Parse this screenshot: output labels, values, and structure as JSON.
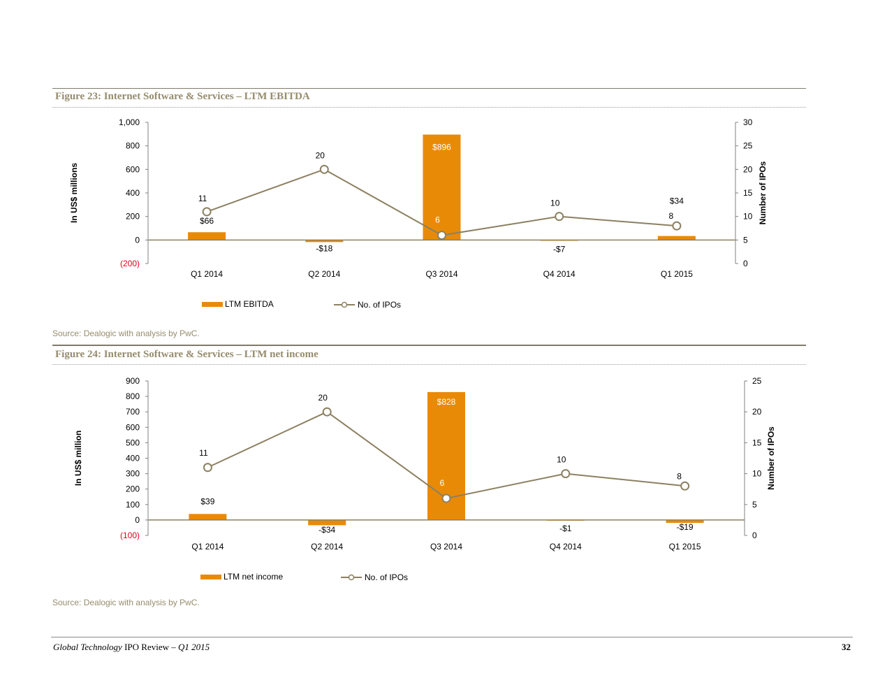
{
  "colors": {
    "bar": "#e98a06",
    "line": "#8c8061",
    "negative_tick": "#e0001b",
    "title": "#968c6d"
  },
  "figures": [
    {
      "title": "Figure 23: Internet Software & Services – LTM EBITDA",
      "source": "Source: Dealogic with analysis by PwC."
    },
    {
      "title": "Figure 24: Internet Software & Services – LTM net income",
      "source": "Source: Dealogic with analysis by PwC."
    }
  ],
  "footer": {
    "title_part1": "Global Technology",
    "title_part2": " IPO Review – ",
    "title_part3": "Q1 2015",
    "page_number": "32"
  },
  "chart_data": [
    {
      "type": "bar",
      "categories": [
        "Q1 2014",
        "Q2 2014",
        "Q3 2014",
        "Q4 2014",
        "Q1 2015"
      ],
      "ylabel": "In US$ millions",
      "y2label": "Number of IPOs",
      "ylim": [
        -200,
        1000
      ],
      "yticks": [
        -200,
        0,
        200,
        400,
        600,
        800,
        1000
      ],
      "ytick_labels": [
        "(200)",
        "0",
        "200",
        "400",
        "600",
        "800",
        "1,000"
      ],
      "y2lim": [
        0,
        30
      ],
      "y2ticks": [
        0,
        5,
        10,
        15,
        20,
        25,
        30
      ],
      "legend_position": "bottom",
      "series": [
        {
          "name": "LTM EBITDA",
          "type": "bar",
          "axis": "left",
          "values": [
            66,
            -18,
            896,
            -7,
            34
          ],
          "labels": [
            "$66",
            "-$18",
            "$896",
            "-$7",
            "$34"
          ]
        },
        {
          "name": "No. of IPOs",
          "type": "line",
          "axis": "right",
          "values": [
            11,
            20,
            6,
            10,
            8
          ],
          "labels": [
            "11",
            "20",
            "6",
            "10",
            "8"
          ]
        }
      ]
    },
    {
      "type": "bar",
      "categories": [
        "Q1 2014",
        "Q2 2014",
        "Q3 2014",
        "Q4 2014",
        "Q1 2015"
      ],
      "ylabel": "In US$ million",
      "y2label": "Number of IPOs",
      "ylim": [
        -100,
        900
      ],
      "yticks": [
        -100,
        0,
        100,
        200,
        300,
        400,
        500,
        600,
        700,
        800,
        900
      ],
      "ytick_labels": [
        "(100)",
        "0",
        "100",
        "200",
        "300",
        "400",
        "500",
        "600",
        "700",
        "800",
        "900"
      ],
      "y2lim": [
        0,
        25
      ],
      "y2ticks": [
        0,
        5,
        10,
        15,
        20,
        25
      ],
      "legend_position": "bottom",
      "series": [
        {
          "name": "LTM net income",
          "type": "bar",
          "axis": "left",
          "values": [
            39,
            -34,
            828,
            -1,
            -19
          ],
          "labels": [
            "$39",
            "-$34",
            "$828",
            "-$1",
            "-$19"
          ]
        },
        {
          "name": "No. of IPOs",
          "type": "line",
          "axis": "right",
          "values": [
            11,
            20,
            6,
            10,
            8
          ],
          "labels": [
            "11",
            "20",
            "6",
            "10",
            "8"
          ]
        }
      ]
    }
  ]
}
